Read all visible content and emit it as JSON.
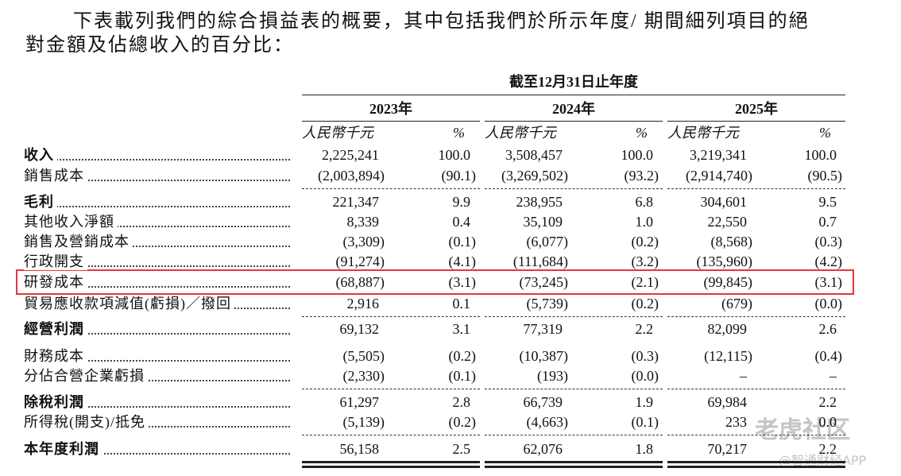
{
  "intro": [
    "下表載列我們的綜合損益表的概要，其中包括我們於所示年度/ 期間細列項目的絕",
    "對金額及佔總收入的百分比："
  ],
  "table": {
    "period_header": "截至12月31日止年度",
    "columns": [
      {
        "year": "2023年",
        "amount_unit": "人民幣千元",
        "pct_unit": "%"
      },
      {
        "year": "2024年",
        "amount_unit": "人民幣千元",
        "pct_unit": "%"
      },
      {
        "year": "2025年",
        "amount_unit": "人民幣千元",
        "pct_unit": "%"
      }
    ],
    "rows": [
      {
        "label": "收入",
        "bold": true,
        "cells": [
          "2,225,241",
          "100.0",
          "3,508,457",
          "100.0",
          "3,219,341",
          "100.0"
        ]
      },
      {
        "label": "銷售成本",
        "bold": false,
        "cells": [
          "(2,003,894)",
          "(90.1)",
          "(3,269,502)",
          "(93.2)",
          "(2,914,740)",
          "(90.5)"
        ]
      },
      {
        "label": "毛利",
        "bold": true,
        "cells": [
          "221,347",
          "9.9",
          "238,955",
          "6.8",
          "304,601",
          "9.5"
        ]
      },
      {
        "label": "其他收入淨額",
        "bold": false,
        "cells": [
          "8,339",
          "0.4",
          "35,109",
          "1.0",
          "22,550",
          "0.7"
        ]
      },
      {
        "label": "銷售及營銷成本",
        "bold": false,
        "cells": [
          "(3,309)",
          "(0.1)",
          "(6,077)",
          "(0.2)",
          "(8,568)",
          "(0.3)"
        ]
      },
      {
        "label": "行政開支",
        "bold": false,
        "cells": [
          "(91,274)",
          "(4.1)",
          "(111,684)",
          "(3.2)",
          "(135,960)",
          "(4.2)"
        ]
      },
      {
        "label": "研發成本",
        "bold": false,
        "cells": [
          "(68,887)",
          "(3.1)",
          "(73,245)",
          "(2.1)",
          "(99,845)",
          "(3.1)"
        ]
      },
      {
        "label": "貿易應收款項減值(虧損)／撥回",
        "bold": false,
        "cells": [
          "2,916",
          "0.1",
          "(5,739)",
          "(0.2)",
          "(679)",
          "(0.0)"
        ]
      },
      {
        "label": "經營利潤",
        "bold": true,
        "cells": [
          "69,132",
          "3.1",
          "77,319",
          "2.2",
          "82,099",
          "2.6"
        ]
      },
      {
        "label": "財務成本",
        "bold": false,
        "cells": [
          "(5,505)",
          "(0.2)",
          "(10,387)",
          "(0.3)",
          "(12,115)",
          "(0.4)"
        ]
      },
      {
        "label": "分佔合營企業虧損",
        "bold": false,
        "cells": [
          "(2,330)",
          "(0.1)",
          "(193)",
          "(0.0)",
          "–",
          "–"
        ]
      },
      {
        "label": "除稅利潤",
        "bold": true,
        "cells": [
          "61,297",
          "2.8",
          "66,739",
          "1.9",
          "69,984",
          "2.2"
        ]
      },
      {
        "label": "所得稅(開支)/抵免",
        "bold": false,
        "cells": [
          "(5,139)",
          "(0.2)",
          "(4,663)",
          "(0.1)",
          "233",
          "0.0"
        ]
      },
      {
        "label": "本年度利潤",
        "bold": true,
        "cells": [
          "56,158",
          "2.5",
          "62,076",
          "1.8",
          "70,217",
          "2.2"
        ]
      }
    ]
  },
  "watermark": {
    "logo": "老虎社区",
    "credit": "@智通财经APP"
  }
}
